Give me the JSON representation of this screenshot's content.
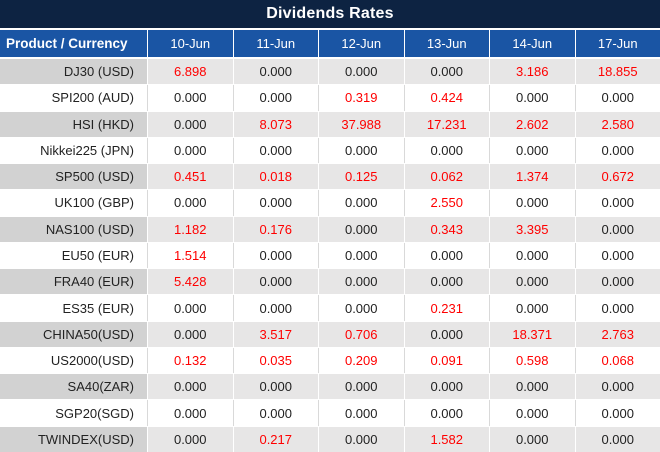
{
  "title": "Dividends Rates",
  "colors": {
    "title_bar_bg": "#0d2342",
    "header_row_bg": "#1a55a4",
    "stripe_product_bg": "#d2d2d2",
    "stripe_value_bg": "#e7e6e6",
    "nonzero_value_red": "#ff0000",
    "zero_value_text": "#222222",
    "header_text": "#ffffff"
  },
  "table": {
    "product_header": "Product / Currency",
    "date_headers": [
      "10-Jun",
      "11-Jun",
      "12-Jun",
      "13-Jun",
      "14-Jun",
      "17-Jun"
    ],
    "rows": [
      {
        "product": "DJ30 (USD)",
        "values": [
          "6.898",
          "0.000",
          "0.000",
          "0.000",
          "3.186",
          "18.855"
        ]
      },
      {
        "product": "SPI200 (AUD)",
        "values": [
          "0.000",
          "0.000",
          "0.319",
          "0.424",
          "0.000",
          "0.000"
        ]
      },
      {
        "product": "HSI (HKD)",
        "values": [
          "0.000",
          "8.073",
          "37.988",
          "17.231",
          "2.602",
          "2.580"
        ]
      },
      {
        "product": "Nikkei225 (JPN)",
        "values": [
          "0.000",
          "0.000",
          "0.000",
          "0.000",
          "0.000",
          "0.000"
        ]
      },
      {
        "product": "SP500 (USD)",
        "values": [
          "0.451",
          "0.018",
          "0.125",
          "0.062",
          "1.374",
          "0.672"
        ]
      },
      {
        "product": "UK100 (GBP)",
        "values": [
          "0.000",
          "0.000",
          "0.000",
          "2.550",
          "0.000",
          "0.000"
        ]
      },
      {
        "product": "NAS100 (USD)",
        "values": [
          "1.182",
          "0.176",
          "0.000",
          "0.343",
          "3.395",
          "0.000"
        ]
      },
      {
        "product": "EU50 (EUR)",
        "values": [
          "1.514",
          "0.000",
          "0.000",
          "0.000",
          "0.000",
          "0.000"
        ]
      },
      {
        "product": "FRA40 (EUR)",
        "values": [
          "5.428",
          "0.000",
          "0.000",
          "0.000",
          "0.000",
          "0.000"
        ]
      },
      {
        "product": "ES35 (EUR)",
        "values": [
          "0.000",
          "0.000",
          "0.000",
          "0.231",
          "0.000",
          "0.000"
        ]
      },
      {
        "product": "CHINA50(USD)",
        "values": [
          "0.000",
          "3.517",
          "0.706",
          "0.000",
          "18.371",
          "2.763"
        ]
      },
      {
        "product": "US2000(USD)",
        "values": [
          "0.132",
          "0.035",
          "0.209",
          "0.091",
          "0.598",
          "0.068"
        ]
      },
      {
        "product": "SA40(ZAR)",
        "values": [
          "0.000",
          "0.000",
          "0.000",
          "0.000",
          "0.000",
          "0.000"
        ]
      },
      {
        "product": "SGP20(SGD)",
        "values": [
          "0.000",
          "0.000",
          "0.000",
          "0.000",
          "0.000",
          "0.000"
        ]
      },
      {
        "product": "TWINDEX(USD)",
        "values": [
          "0.000",
          "0.217",
          "0.000",
          "1.582",
          "0.000",
          "0.000"
        ]
      }
    ]
  }
}
